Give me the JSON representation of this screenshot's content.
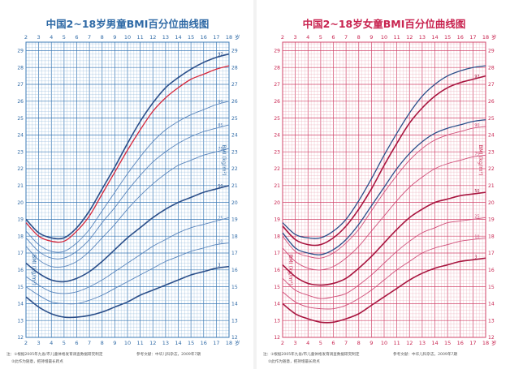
{
  "page": {
    "background": "#ffffff"
  },
  "chart_data": [
    {
      "type": "line",
      "title": "中国2~18岁男童BMI百分位曲线图",
      "xlabel": "岁",
      "ylabel": "BMI (kg/m²)",
      "xlim": [
        2,
        18
      ],
      "ylim": [
        12,
        29.5
      ],
      "x_ticks": [
        2,
        3,
        4,
        5,
        6,
        7,
        8,
        9,
        10,
        11,
        12,
        13,
        14,
        15,
        16,
        17,
        18
      ],
      "y_ticks": [
        12,
        13,
        14,
        15,
        16,
        17,
        18,
        19,
        20,
        21,
        22,
        23,
        24,
        25,
        26,
        27,
        28,
        29
      ],
      "grid": true,
      "colors": {
        "grid": "#8ab4d8",
        "grid_major": "#3a78b5",
        "text": "#2f6aa6",
        "title": "#2f6aa6",
        "series_main": "#2b4f8a",
        "series_light": "#5a86bd",
        "highlight": "#d6273b"
      },
      "x": [
        2,
        3,
        4,
        5,
        6,
        7,
        8,
        9,
        10,
        11,
        12,
        13,
        14,
        15,
        16,
        17,
        18
      ],
      "series": [
        {
          "name": "97",
          "values": [
            19.0,
            18.2,
            17.9,
            17.9,
            18.5,
            19.5,
            20.8,
            22.1,
            23.5,
            24.8,
            25.9,
            26.8,
            27.4,
            27.9,
            28.3,
            28.6,
            28.8
          ]
        },
        {
          "name": "",
          "role": "highlight",
          "values": [
            18.8,
            18.0,
            17.7,
            17.7,
            18.3,
            19.2,
            20.5,
            21.8,
            23.1,
            24.3,
            25.4,
            26.2,
            26.8,
            27.3,
            27.6,
            27.9,
            28.1
          ]
        },
        {
          "name": "90",
          "values": [
            18.3,
            17.5,
            17.1,
            17.1,
            17.6,
            18.4,
            19.5,
            20.6,
            21.7,
            22.7,
            23.6,
            24.3,
            24.8,
            25.2,
            25.5,
            25.8,
            26.0
          ]
        },
        {
          "name": "85",
          "values": [
            17.9,
            17.1,
            16.7,
            16.7,
            17.1,
            17.8,
            18.8,
            19.7,
            20.7,
            21.6,
            22.4,
            23.0,
            23.5,
            23.9,
            24.2,
            24.4,
            24.6
          ]
        },
        {
          "name": "75",
          "values": [
            17.4,
            16.6,
            16.2,
            16.2,
            16.5,
            17.1,
            17.9,
            18.7,
            19.6,
            20.4,
            21.1,
            21.7,
            22.2,
            22.5,
            22.8,
            23.0,
            23.2
          ]
        },
        {
          "name": "50",
          "values": [
            16.4,
            15.8,
            15.4,
            15.3,
            15.5,
            15.9,
            16.5,
            17.2,
            17.9,
            18.5,
            19.1,
            19.6,
            20.0,
            20.3,
            20.6,
            20.8,
            21.0
          ]
        },
        {
          "name": "25",
          "values": [
            15.6,
            15.1,
            14.7,
            14.6,
            14.7,
            15.0,
            15.4,
            15.9,
            16.4,
            16.9,
            17.4,
            17.8,
            18.2,
            18.5,
            18.7,
            18.9,
            19.1
          ]
        },
        {
          "name": "10",
          "values": [
            15.0,
            14.5,
            14.1,
            14.0,
            14.0,
            14.2,
            14.5,
            14.9,
            15.3,
            15.7,
            16.1,
            16.5,
            16.8,
            17.1,
            17.3,
            17.5,
            17.6
          ]
        },
        {
          "name": "3",
          "values": [
            14.4,
            13.8,
            13.4,
            13.2,
            13.2,
            13.3,
            13.5,
            13.8,
            14.1,
            14.5,
            14.8,
            15.1,
            15.4,
            15.7,
            15.9,
            16.1,
            16.2
          ]
        }
      ],
      "notes": [
        "注：①根据2005年九省/市儿童体格发育调查数据研究制定",
        "②此作为随意，把持增最长跨点"
      ],
      "reference": "参考文献：中华儿科杂志，2009年7期"
    },
    {
      "type": "line",
      "title": "中国2~18岁女童BMI百分位曲线图",
      "xlabel": "岁",
      "ylabel": "BMI (kg/m²)",
      "xlim": [
        2,
        18
      ],
      "ylim": [
        12,
        29.5
      ],
      "x_ticks": [
        2,
        3,
        4,
        5,
        6,
        7,
        8,
        9,
        10,
        11,
        12,
        13,
        14,
        15,
        16,
        17,
        18
      ],
      "y_ticks": [
        12,
        13,
        14,
        15,
        16,
        17,
        18,
        19,
        20,
        21,
        22,
        23,
        24,
        25,
        26,
        27,
        28,
        29
      ],
      "grid": true,
      "colors": {
        "grid": "#eaa3b2",
        "grid_major": "#d1446a",
        "text": "#c8234f",
        "title": "#c8234f",
        "series_main": "#a8153f",
        "series_light": "#d1507a",
        "highlight": "#2b4f8a"
      },
      "x": [
        2,
        3,
        4,
        5,
        6,
        7,
        8,
        9,
        10,
        11,
        12,
        13,
        14,
        15,
        16,
        17,
        18
      ],
      "series": [
        {
          "name": "",
          "role": "highlight",
          "values": [
            18.8,
            18.1,
            17.9,
            17.9,
            18.3,
            19.0,
            20.1,
            21.4,
            22.8,
            24.1,
            25.3,
            26.3,
            27.0,
            27.5,
            27.8,
            28.0,
            28.1
          ]
        },
        {
          "name": "97",
          "values": [
            18.6,
            17.8,
            17.5,
            17.5,
            17.9,
            18.6,
            19.6,
            20.8,
            22.2,
            23.5,
            24.7,
            25.6,
            26.3,
            26.8,
            27.1,
            27.3,
            27.5
          ]
        },
        {
          "name": "",
          "role": "highlight",
          "values": [
            18.2,
            17.3,
            17.0,
            16.9,
            17.2,
            17.8,
            18.7,
            19.8,
            20.9,
            22.0,
            22.9,
            23.6,
            24.1,
            24.4,
            24.6,
            24.8,
            24.9
          ]
        },
        {
          "name": "90",
          "values": [
            18.0,
            17.1,
            16.8,
            16.7,
            17.0,
            17.6,
            18.4,
            19.5,
            20.6,
            21.6,
            22.5,
            23.2,
            23.7,
            24.0,
            24.2,
            24.4,
            24.5
          ]
        },
        {
          "name": "75",
          "values": [
            17.3,
            16.5,
            16.1,
            16.0,
            16.2,
            16.7,
            17.4,
            18.3,
            19.2,
            20.1,
            20.9,
            21.5,
            22.0,
            22.3,
            22.5,
            22.7,
            22.8
          ]
        },
        {
          "name": "50",
          "values": [
            16.3,
            15.6,
            15.2,
            15.1,
            15.2,
            15.5,
            16.1,
            16.8,
            17.6,
            18.4,
            19.1,
            19.6,
            20.0,
            20.2,
            20.4,
            20.5,
            20.6
          ]
        },
        {
          "name": "25",
          "values": [
            15.5,
            14.8,
            14.5,
            14.3,
            14.4,
            14.6,
            15.1,
            15.7,
            16.4,
            17.1,
            17.7,
            18.2,
            18.5,
            18.8,
            18.9,
            19.0,
            19.1
          ]
        },
        {
          "name": "10",
          "values": [
            14.7,
            14.1,
            13.8,
            13.7,
            13.7,
            13.9,
            14.3,
            14.8,
            15.4,
            16.0,
            16.5,
            17.0,
            17.3,
            17.5,
            17.7,
            17.8,
            17.9
          ]
        },
        {
          "name": "3",
          "values": [
            14.0,
            13.4,
            13.1,
            12.9,
            12.9,
            13.1,
            13.4,
            13.9,
            14.4,
            14.9,
            15.4,
            15.8,
            16.1,
            16.3,
            16.5,
            16.6,
            16.7
          ]
        }
      ],
      "notes": [
        "注：①根据2005年九省/市儿童体格发育调查数据研究制定",
        "②此作为随意，把持增最长跨点"
      ],
      "reference": "参考文献：中华儿科杂志，2009年7期"
    }
  ]
}
